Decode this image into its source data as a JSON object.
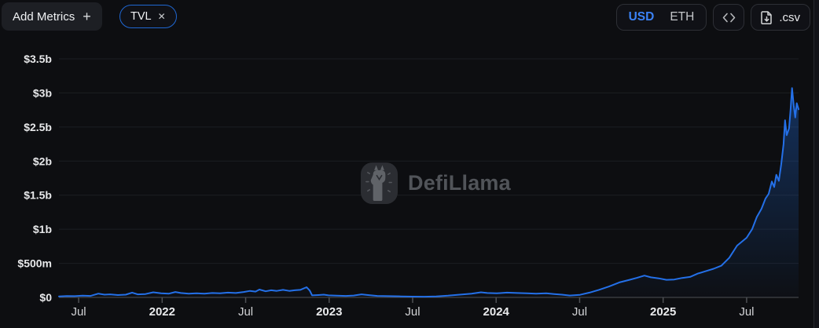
{
  "header": {
    "add_metrics_label": "Add Metrics",
    "metric_chip_label": "TVL",
    "icons": {
      "plus": "+",
      "close": "✕"
    }
  },
  "controls": {
    "currency_options": [
      "USD",
      "ETH"
    ],
    "active_currency": "USD",
    "csv_label": ".csv"
  },
  "watermark": {
    "text": "DefiLlama"
  },
  "colors": {
    "accent_blue": "#3b82f6",
    "chip_border": "#1f67d2",
    "line": "#2470e8",
    "area_color": "#1f67d2",
    "area_top_opacity": 0.42,
    "area_bottom_opacity": 0.02,
    "grid": "#1c1e23",
    "axis": "#4e5054",
    "background": "#0d0e11"
  },
  "chart_data": {
    "type": "area",
    "series_name": "TVL",
    "currency": "USD",
    "title": "",
    "xlabel": "",
    "ylabel": "",
    "x_unit": "decimal_year",
    "y_unit": "USD_millions",
    "grid": true,
    "legend_position": "none",
    "xlim": [
      2021.382,
      2025.811
    ],
    "ylim": [
      0,
      3500
    ],
    "y_ticks": [
      {
        "label": "$0",
        "value": 0
      },
      {
        "label": "$500m",
        "value": 500
      },
      {
        "label": "$1b",
        "value": 1000
      },
      {
        "label": "$1.5b",
        "value": 1500
      },
      {
        "label": "$2b",
        "value": 2000
      },
      {
        "label": "$2.5b",
        "value": 2500
      },
      {
        "label": "$3b",
        "value": 3000
      },
      {
        "label": "$3.5b",
        "value": 3500
      }
    ],
    "x_ticks": [
      {
        "label": "Jul",
        "t": 2021.5,
        "bold": false
      },
      {
        "label": "2022",
        "t": 2022.0,
        "bold": true
      },
      {
        "label": "Jul",
        "t": 2022.5,
        "bold": false
      },
      {
        "label": "2023",
        "t": 2023.0,
        "bold": true
      },
      {
        "label": "Jul",
        "t": 2023.5,
        "bold": false
      },
      {
        "label": "2024",
        "t": 2024.0,
        "bold": true
      },
      {
        "label": "Jul",
        "t": 2024.5,
        "bold": false
      },
      {
        "label": "2025",
        "t": 2025.0,
        "bold": true
      },
      {
        "label": "Jul",
        "t": 2025.5,
        "bold": false
      }
    ],
    "points": [
      [
        2021.382,
        15
      ],
      [
        2021.429,
        20
      ],
      [
        2021.476,
        18
      ],
      [
        2021.524,
        25
      ],
      [
        2021.571,
        22
      ],
      [
        2021.618,
        55
      ],
      [
        2021.655,
        40
      ],
      [
        2021.688,
        45
      ],
      [
        2021.735,
        35
      ],
      [
        2021.782,
        40
      ],
      [
        2021.82,
        70
      ],
      [
        2021.853,
        45
      ],
      [
        2021.9,
        50
      ],
      [
        2021.947,
        75
      ],
      [
        2021.994,
        60
      ],
      [
        2022.041,
        55
      ],
      [
        2022.079,
        80
      ],
      [
        2022.112,
        65
      ],
      [
        2022.159,
        55
      ],
      [
        2022.206,
        60
      ],
      [
        2022.253,
        55
      ],
      [
        2022.3,
        65
      ],
      [
        2022.347,
        60
      ],
      [
        2022.394,
        70
      ],
      [
        2022.441,
        65
      ],
      [
        2022.488,
        80
      ],
      [
        2022.526,
        95
      ],
      [
        2022.559,
        85
      ],
      [
        2022.582,
        115
      ],
      [
        2022.62,
        90
      ],
      [
        2022.653,
        105
      ],
      [
        2022.686,
        95
      ],
      [
        2022.724,
        110
      ],
      [
        2022.761,
        95
      ],
      [
        2022.794,
        105
      ],
      [
        2022.827,
        110
      ],
      [
        2022.865,
        150
      ],
      [
        2022.884,
        100
      ],
      [
        2022.898,
        30
      ],
      [
        2022.935,
        35
      ],
      [
        2022.968,
        40
      ],
      [
        2022.996,
        30
      ],
      [
        2023.044,
        25
      ],
      [
        2023.1,
        22
      ],
      [
        2023.147,
        28
      ],
      [
        2023.194,
        45
      ],
      [
        2023.232,
        35
      ],
      [
        2023.288,
        22
      ],
      [
        2023.359,
        18
      ],
      [
        2023.429,
        15
      ],
      [
        2023.5,
        12
      ],
      [
        2023.571,
        10
      ],
      [
        2023.641,
        15
      ],
      [
        2023.712,
        25
      ],
      [
        2023.782,
        40
      ],
      [
        2023.853,
        55
      ],
      [
        2023.909,
        75
      ],
      [
        2023.947,
        65
      ],
      [
        2024.004,
        60
      ],
      [
        2024.065,
        70
      ],
      [
        2024.126,
        65
      ],
      [
        2024.182,
        60
      ],
      [
        2024.239,
        55
      ],
      [
        2024.3,
        60
      ],
      [
        2024.347,
        50
      ],
      [
        2024.394,
        40
      ],
      [
        2024.441,
        28
      ],
      [
        2024.502,
        38
      ],
      [
        2024.559,
        70
      ],
      [
        2024.615,
        110
      ],
      [
        2024.676,
        160
      ],
      [
        2024.738,
        220
      ],
      [
        2024.794,
        255
      ],
      [
        2024.841,
        285
      ],
      [
        2024.888,
        320
      ],
      [
        2024.926,
        295
      ],
      [
        2024.973,
        280
      ],
      [
        2025.02,
        258
      ],
      [
        2025.067,
        262
      ],
      [
        2025.114,
        285
      ],
      [
        2025.161,
        300
      ],
      [
        2025.208,
        350
      ],
      [
        2025.255,
        385
      ],
      [
        2025.302,
        420
      ],
      [
        2025.349,
        465
      ],
      [
        2025.396,
        580
      ],
      [
        2025.443,
        760
      ],
      [
        2025.5,
        875
      ],
      [
        2025.533,
        1000
      ],
      [
        2025.561,
        1180
      ],
      [
        2025.589,
        1300
      ],
      [
        2025.613,
        1450
      ],
      [
        2025.632,
        1520
      ],
      [
        2025.651,
        1700
      ],
      [
        2025.665,
        1620
      ],
      [
        2025.678,
        1800
      ],
      [
        2025.693,
        1710
      ],
      [
        2025.707,
        1950
      ],
      [
        2025.721,
        2250
      ],
      [
        2025.73,
        2600
      ],
      [
        2025.74,
        2380
      ],
      [
        2025.754,
        2480
      ],
      [
        2025.763,
        2750
      ],
      [
        2025.772,
        3070
      ],
      [
        2025.782,
        2820
      ],
      [
        2025.791,
        2640
      ],
      [
        2025.8,
        2850
      ],
      [
        2025.811,
        2760
      ]
    ]
  }
}
